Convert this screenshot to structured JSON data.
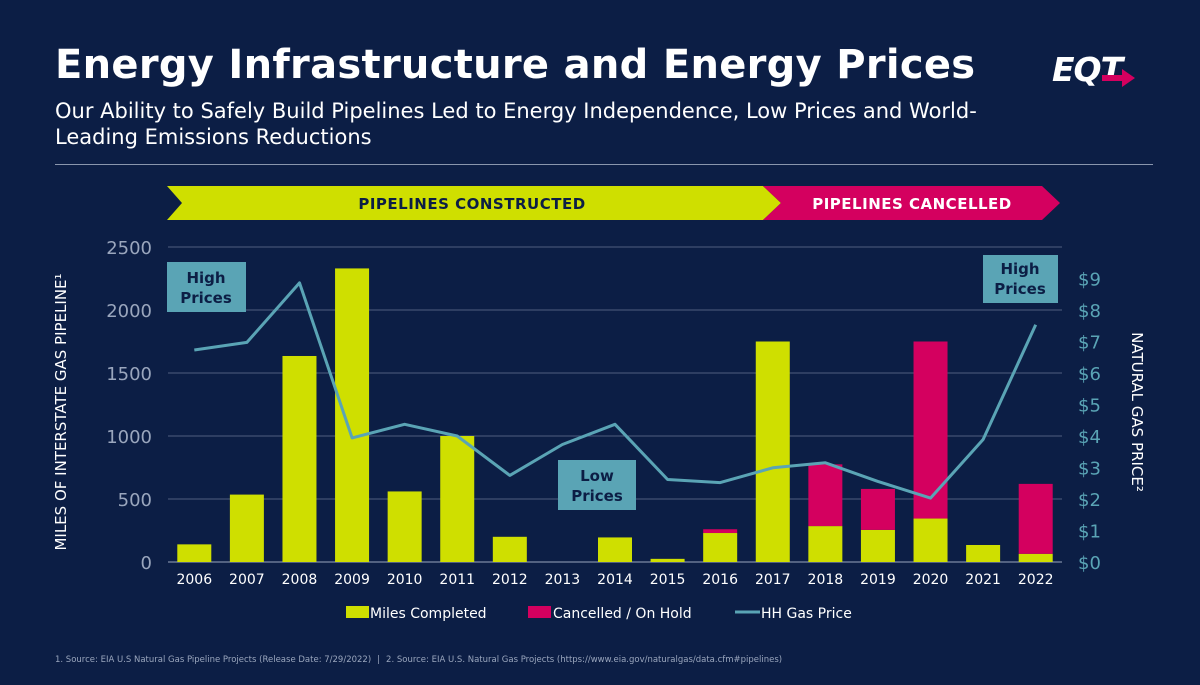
{
  "header": {
    "title": "Energy Infrastructure and Energy Prices",
    "subtitle": "Our Ability to Safely Build Pipelines Led to Energy Independence, Low Prices and World-Leading Emissions Reductions",
    "logo_text": "EQT"
  },
  "banners": {
    "constructed": "PIPELINES CONSTRUCTED",
    "cancelled": "PIPELINES CANCELLED"
  },
  "callouts": {
    "high_left": [
      "High",
      "Prices"
    ],
    "low": [
      "Low",
      "Prices"
    ],
    "high_right": [
      "High",
      "Prices"
    ]
  },
  "chart_data": {
    "type": "bar",
    "categories": [
      "2006",
      "2007",
      "2008",
      "2009",
      "2010",
      "2011",
      "2012",
      "2013",
      "2014",
      "2015",
      "2016",
      "2017",
      "2018",
      "2019",
      "2020",
      "2021",
      "2022"
    ],
    "series": [
      {
        "name": "Miles Completed",
        "kind": "bar",
        "color": "#cfdf00",
        "values": [
          140,
          535,
          1635,
          2330,
          560,
          1000,
          200,
          0,
          195,
          25,
          230,
          1750,
          285,
          255,
          345,
          135,
          65
        ]
      },
      {
        "name": "Cancelled / On Hold",
        "kind": "bar-stacked",
        "color": "#d4005f",
        "values": [
          0,
          0,
          0,
          0,
          0,
          0,
          0,
          0,
          0,
          0,
          30,
          0,
          490,
          325,
          1405,
          0,
          555
        ]
      },
      {
        "name": "HH Gas Price",
        "kind": "line",
        "axis": "right",
        "color": "#5aa4b5",
        "values": [
          6.73,
          6.97,
          8.86,
          3.94,
          4.37,
          4.0,
          2.75,
          3.73,
          4.37,
          2.62,
          2.52,
          2.99,
          3.15,
          2.56,
          2.03,
          3.89,
          7.53
        ]
      }
    ],
    "ylabel": "MILES OF INTERSTATE GAS PIPELINE¹",
    "y2label": "NATURAL GAS PRICE²",
    "ylim": [
      0,
      2500
    ],
    "yticks": [
      "0",
      "500",
      "1000",
      "1500",
      "2000",
      "2500"
    ],
    "y2lim": [
      0,
      10
    ],
    "y2ticks": [
      "$0",
      "$1",
      "$2",
      "$3",
      "$4",
      "$5",
      "$6",
      "$7",
      "$8",
      "$9"
    ],
    "legend": [
      "Miles Completed",
      "Cancelled / On Hold",
      "HH Gas Price"
    ],
    "legend_position": "bottom"
  },
  "colors": {
    "background": "#0c1e45",
    "accent_green": "#cfdf00",
    "accent_magenta": "#d4005f",
    "line_teal": "#5aa4b5",
    "callout_bg": "#5aa4b5",
    "callout_text": "#0c1e45"
  },
  "footnote": {
    "source1": "1. Source: EIA U.S Natural Gas Pipeline Projects (Release Date: 7/29/2022)",
    "separator": "|",
    "source2": "2. Source: EIA U.S. Natural Gas Projects (https://www.eia.gov/naturalgas/data.cfm#pipelines)"
  }
}
